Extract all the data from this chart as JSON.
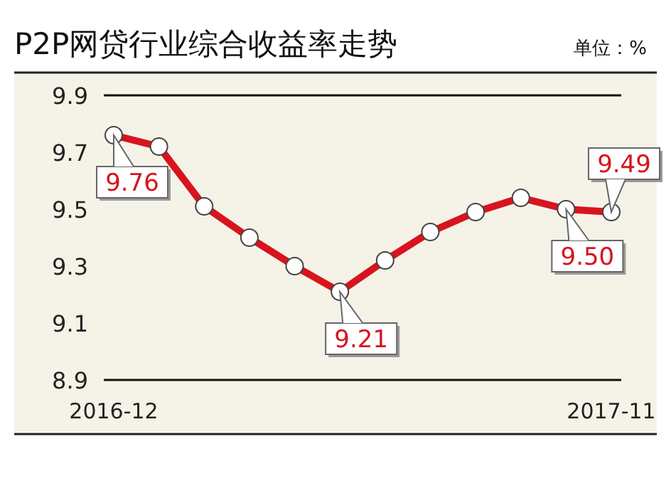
{
  "chart_data": {
    "type": "line",
    "title": "P2P网贷行业综合收益率走势",
    "annotations": [
      "单位：%"
    ],
    "categories": [
      "2016-12",
      null,
      null,
      null,
      null,
      null,
      null,
      null,
      null,
      null,
      null,
      "2017-11"
    ],
    "series": [
      {
        "color": "#d7141e",
        "values": [
          9.76,
          9.72,
          9.51,
          9.4,
          9.3,
          9.21,
          9.32,
          9.42,
          9.49,
          9.54,
          9.5,
          9.49
        ],
        "value_labels": [
          "9.76",
          null,
          null,
          null,
          null,
          "9.21",
          null,
          null,
          null,
          null,
          "9.50",
          "9.49"
        ]
      }
    ],
    "ylim": [
      8.9,
      9.9
    ],
    "yticks": [
      8.9,
      9.1,
      9.3,
      9.5,
      9.7,
      9.9
    ],
    "grid": false,
    "marker": "circle",
    "line_style": "solid"
  }
}
